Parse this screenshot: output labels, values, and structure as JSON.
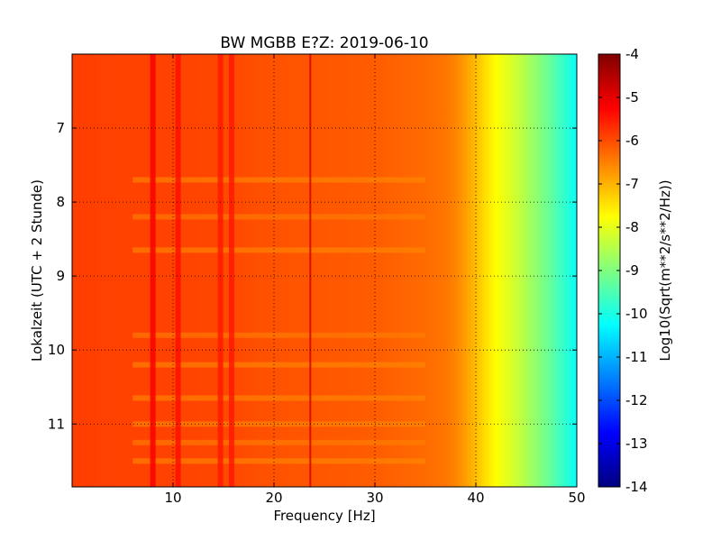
{
  "chart_data": {
    "type": "heatmap",
    "title": "BW MGBB E?Z: 2019-06-10",
    "xlabel": "Frequency [Hz]",
    "ylabel": "Lokalzeit (UTC + 2 Stunde)",
    "colorbar_label": "Log10(Sqrt(m**2/s**2/Hz))",
    "xlim": [
      0,
      50
    ],
    "ylim": [
      11.85,
      6.0
    ],
    "y_inverted": true,
    "x_ticks": [
      "10",
      "20",
      "30",
      "40",
      "50"
    ],
    "x_tick_values": [
      10,
      20,
      30,
      40,
      50
    ],
    "y_ticks": [
      "7",
      "8",
      "9",
      "10",
      "11"
    ],
    "y_tick_values": [
      7,
      8,
      9,
      10,
      11
    ],
    "colorbar_range": [
      -14,
      -4
    ],
    "colorbar_ticks": [
      "-4",
      "-5",
      "-6",
      "-7",
      "-8",
      "-9",
      "-10",
      "-11",
      "-12",
      "-13",
      "-14"
    ],
    "colorbar_tick_values": [
      -4,
      -5,
      -6,
      -7,
      -8,
      -9,
      -10,
      -11,
      -12,
      -13,
      -14
    ],
    "colormap": "jet",
    "grid": true,
    "spectrum_profile": {
      "frequency": [
        0,
        5,
        10,
        15,
        20,
        25,
        30,
        35,
        37,
        38,
        39,
        40,
        41,
        42,
        43,
        44,
        45,
        46,
        47,
        48,
        49,
        50
      ],
      "log_amplitude": [
        -5.85,
        -5.9,
        -5.9,
        -5.95,
        -6.05,
        -6.1,
        -6.15,
        -6.3,
        -6.4,
        -6.55,
        -6.8,
        -7.1,
        -7.45,
        -7.75,
        -8.0,
        -8.25,
        -8.55,
        -8.85,
        -9.15,
        -9.5,
        -9.85,
        -10.2
      ]
    },
    "vertical_features": [
      {
        "frequency": 8.0,
        "log_amplitude": -5.2
      },
      {
        "frequency": 10.5,
        "log_amplitude": -5.4
      },
      {
        "frequency": 14.7,
        "log_amplitude": -5.5
      },
      {
        "frequency": 15.8,
        "log_amplitude": -5.5
      },
      {
        "frequency": 23.6,
        "log_amplitude": -4.9
      }
    ],
    "horizontal_features": [
      {
        "time": 7.7,
        "log_amplitude": -6.6
      },
      {
        "time": 8.2,
        "log_amplitude": -6.5
      },
      {
        "time": 8.65,
        "log_amplitude": -6.6
      },
      {
        "time": 9.8,
        "log_amplitude": -6.5
      },
      {
        "time": 10.2,
        "log_amplitude": -6.6
      },
      {
        "time": 10.65,
        "log_amplitude": -6.6
      },
      {
        "time": 11.0,
        "log_amplitude": -6.6
      },
      {
        "time": 11.25,
        "log_amplitude": -6.5
      },
      {
        "time": 11.5,
        "log_amplitude": -6.6
      }
    ]
  }
}
